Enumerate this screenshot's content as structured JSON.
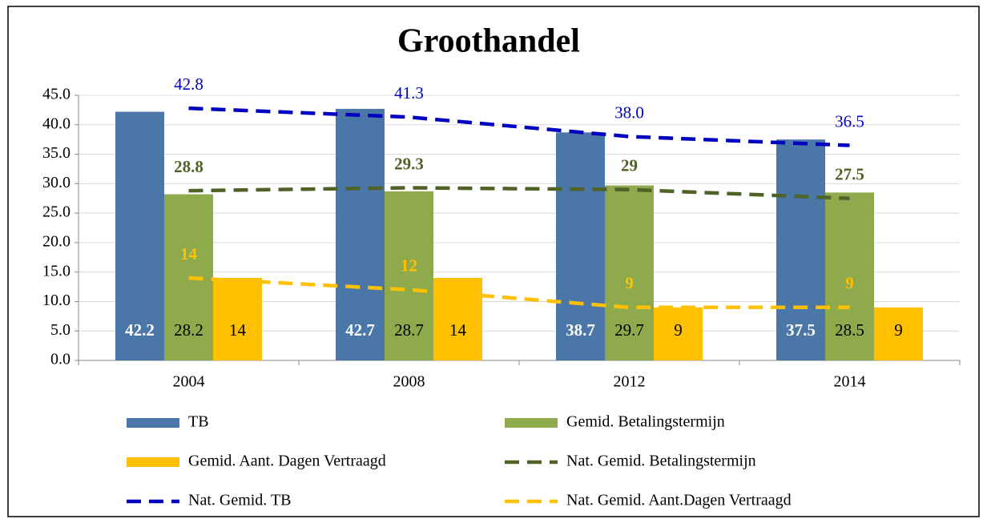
{
  "chart_data": {
    "type": "bar",
    "title": "Groothandel",
    "categories": [
      "2004",
      "2008",
      "2012",
      "2014"
    ],
    "series": [
      {
        "name": "TB",
        "type": "bar",
        "color": "#4a76a8",
        "values": [
          42.2,
          42.7,
          38.7,
          37.5
        ]
      },
      {
        "name": "Gemid. Betalingstermijn",
        "type": "bar",
        "color": "#8faa4c",
        "values": [
          28.2,
          28.7,
          29.7,
          28.5
        ]
      },
      {
        "name": "Gemid. Aant. Dagen Vertraagd",
        "type": "bar",
        "color": "#ffc000",
        "values": [
          14,
          14,
          9,
          9
        ]
      },
      {
        "name": "Nat. Gemid. Betalingstermijn",
        "type": "line",
        "color": "#4f6228",
        "values": [
          28.8,
          29.3,
          29.0,
          27.5
        ]
      },
      {
        "name": "Nat. Gemid. TB",
        "type": "line",
        "color": "#0000c0",
        "values": [
          42.8,
          41.3,
          38.0,
          36.5
        ],
        "value_labels": [
          "42.8",
          "41.3",
          "38.0",
          "36.5"
        ]
      },
      {
        "name": "Nat. Gemid. Aant.Dagen Vertraagd",
        "type": "line",
        "color": "#ffc000",
        "values": [
          14,
          12,
          9,
          9
        ]
      }
    ],
    "ylim": [
      0,
      45
    ],
    "yticks": [
      {
        "value": 0,
        "label": "0.0"
      },
      {
        "value": 5,
        "label": "5.0"
      },
      {
        "value": 10,
        "label": "10.0"
      },
      {
        "value": 15,
        "label": "15.0"
      },
      {
        "value": 20,
        "label": "20.0"
      },
      {
        "value": 25,
        "label": "25.0"
      },
      {
        "value": 30,
        "label": "30.0"
      },
      {
        "value": 35,
        "label": "35.0"
      },
      {
        "value": 40,
        "label": "40.0"
      },
      {
        "value": 45,
        "label": "45.0"
      }
    ],
    "grid": true,
    "legend": "bottom"
  }
}
